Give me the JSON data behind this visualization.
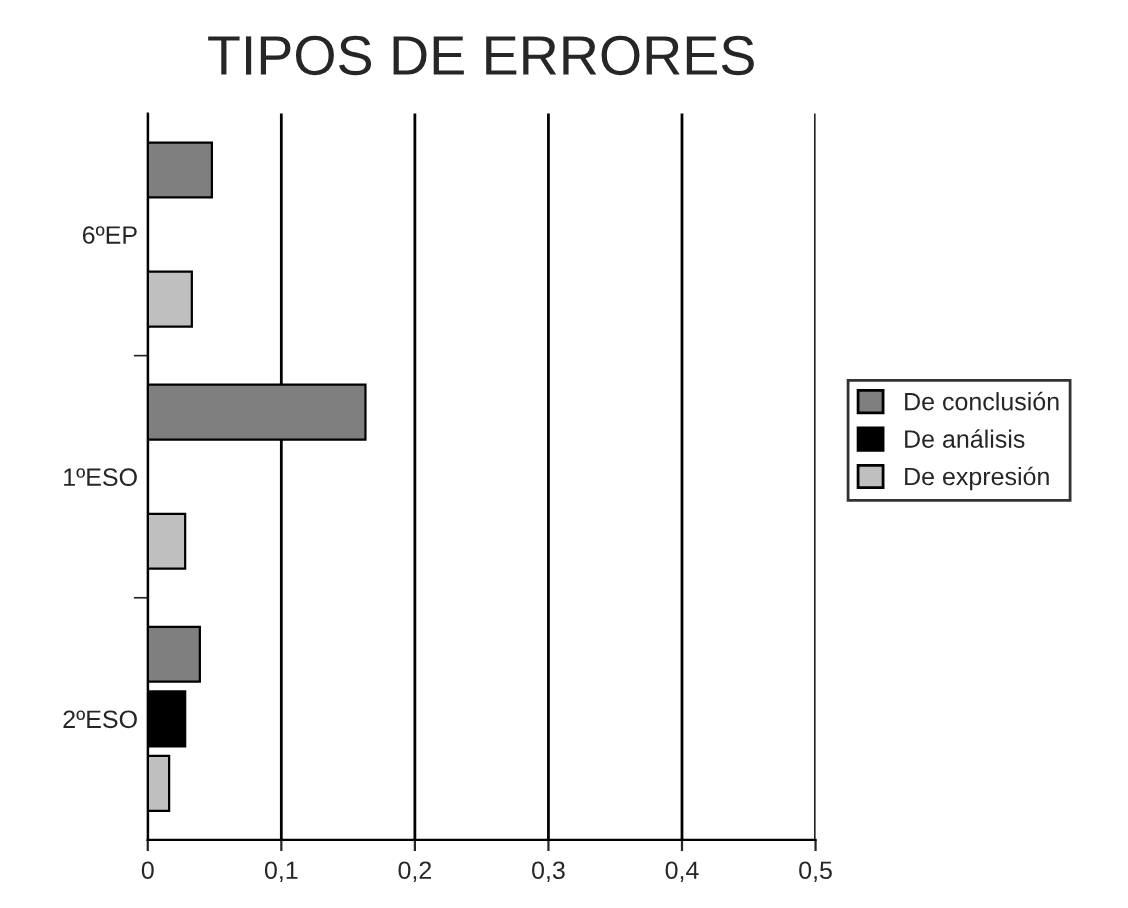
{
  "chart_data": {
    "type": "bar",
    "orientation": "horizontal",
    "title": "TIPOS DE ERRORES",
    "categories": [
      "6ºEP",
      "1ºESO",
      "2ºESO"
    ],
    "series": [
      {
        "name": "De conclusión",
        "color": "#7f7f7f",
        "values": [
          0.048,
          0.163,
          0.039
        ]
      },
      {
        "name": "De análisis",
        "color": "#000000",
        "values": [
          null,
          null,
          0.028
        ]
      },
      {
        "name": "De expresión",
        "color": "#bfbfbf",
        "values": [
          0.033,
          0.028,
          0.016
        ]
      }
    ],
    "xlim": [
      0,
      0.5
    ],
    "xticks": [
      0,
      {
        "value": 0.1,
        "label": "0,1"
      },
      {
        "value": 0.2,
        "label": "0,2"
      },
      {
        "value": 0.3,
        "label": "0,3"
      },
      {
        "value": 0.4,
        "label": "0,4"
      },
      {
        "value": 0.5,
        "label": "0,5"
      }
    ],
    "grid": "x",
    "legend": "right"
  }
}
